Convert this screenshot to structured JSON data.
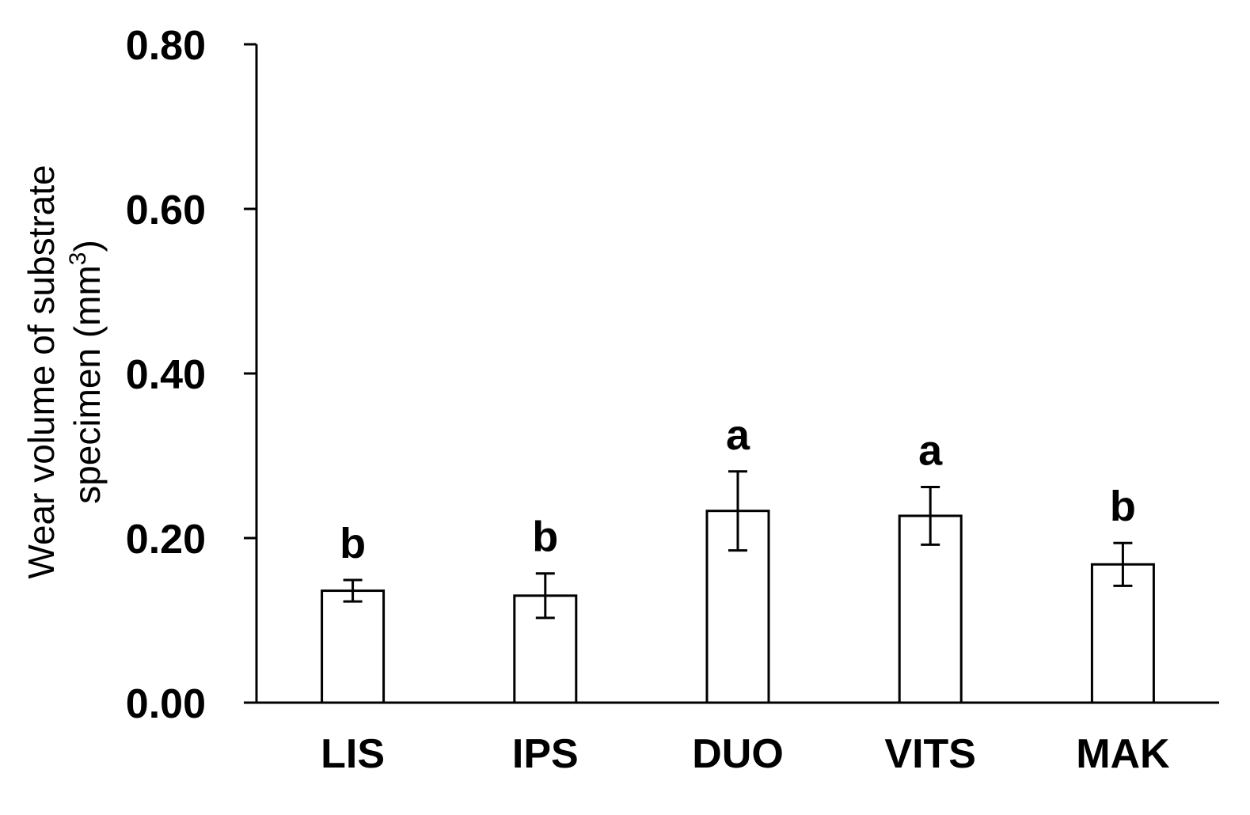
{
  "chart_data": {
    "type": "bar",
    "categories": [
      "LIS",
      "IPS",
      "DUO",
      "VITS",
      "MAK"
    ],
    "values": [
      0.136,
      0.13,
      0.233,
      0.227,
      0.168
    ],
    "errors": [
      0.013,
      0.027,
      0.048,
      0.035,
      0.026
    ],
    "significance": [
      "b",
      "b",
      "a",
      "a",
      "b"
    ],
    "ylabel_line1": "Wear volume of substrate",
    "ylabel_line2": "specimen (mm",
    "ylabel_unit_sup": "3",
    "ylabel_close": ")",
    "xlabel": "",
    "ylim": [
      0,
      0.8
    ],
    "yticks": [
      "0.00",
      "0.20",
      "0.40",
      "0.60",
      "0.80"
    ],
    "ytick_values": [
      0,
      0.2,
      0.4,
      0.6,
      0.8
    ],
    "bar_fill": "#ffffff",
    "bar_stroke": "#000000",
    "grid": false,
    "legend": "none"
  }
}
